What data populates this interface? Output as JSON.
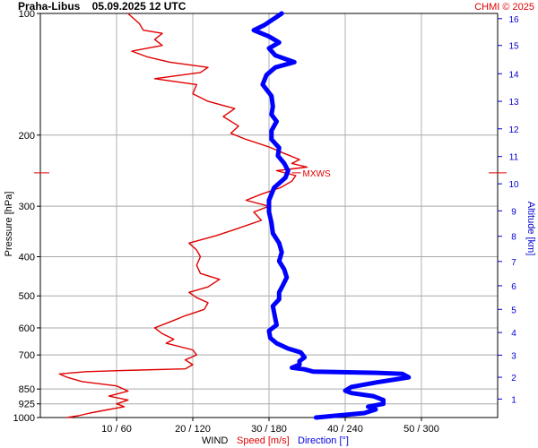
{
  "header": {
    "title": "Praha-Libus    05.09.2025 12 UTC",
    "credit": "CHMI © 2025"
  },
  "chart_data": {
    "type": "line",
    "title": "Praha-Libus    05.09.2025 12 UTC",
    "ylabel": "Pressure [hPa]",
    "y2label": "Altitude [km]",
    "xlabel": {
      "prefix": "WIND",
      "speed": "Speed [m/s]",
      "direction": "Direction [°]"
    },
    "y_scale": "log",
    "y_range_hpa": [
      1000,
      100
    ],
    "pressure_ticks": [
      100,
      200,
      300,
      400,
      500,
      600,
      700,
      850,
      925,
      1000
    ],
    "altitude_ticks_km": [
      1,
      2,
      3,
      4,
      5,
      6,
      7,
      8,
      9,
      10,
      11,
      12,
      13,
      14,
      15,
      16
    ],
    "altitude_km_at_pressure": [
      [
        1,
        900
      ],
      [
        2,
        795
      ],
      [
        3,
        701
      ],
      [
        4,
        616
      ],
      [
        5,
        540
      ],
      [
        6,
        472
      ],
      [
        7,
        411
      ],
      [
        8,
        356
      ],
      [
        9,
        308
      ],
      [
        10,
        264
      ],
      [
        11,
        226
      ],
      [
        12,
        193
      ],
      [
        13,
        165
      ],
      [
        14,
        141
      ],
      [
        15,
        120
      ],
      [
        16,
        103
      ]
    ],
    "x_tick_labels": [
      "10 / 60",
      "20 / 120",
      "30 / 180",
      "40 / 240",
      "50 / 300"
    ],
    "speed_range_ms": [
      0,
      60
    ],
    "direction_range_deg": [
      0,
      360
    ],
    "grid": true,
    "annotation": {
      "label": "MXWS",
      "pressure_hpa": 248,
      "speed_ms": 33
    },
    "series": [
      {
        "name": "Speed [m/s]",
        "unit": "m/s",
        "color": "#e00000",
        "points": [
          [
            1000,
            3.5
          ],
          [
            990,
            5
          ],
          [
            975,
            6.5
          ],
          [
            955,
            9
          ],
          [
            940,
            11
          ],
          [
            925,
            10
          ],
          [
            905,
            11.5
          ],
          [
            885,
            9
          ],
          [
            860,
            11.5
          ],
          [
            835,
            10
          ],
          [
            815,
            5.5
          ],
          [
            795,
            3.5
          ],
          [
            780,
            2.5
          ],
          [
            770,
            6
          ],
          [
            763,
            13
          ],
          [
            758,
            19
          ],
          [
            740,
            20
          ],
          [
            720,
            19
          ],
          [
            700,
            20.5
          ],
          [
            680,
            20
          ],
          [
            655,
            16.5
          ],
          [
            640,
            17.5
          ],
          [
            620,
            16
          ],
          [
            600,
            15
          ],
          [
            580,
            17
          ],
          [
            560,
            19
          ],
          [
            540,
            21.5
          ],
          [
            520,
            22
          ],
          [
            505,
            20.5
          ],
          [
            490,
            19.5
          ],
          [
            475,
            22
          ],
          [
            455,
            23.5
          ],
          [
            440,
            21
          ],
          [
            420,
            20.5
          ],
          [
            400,
            21
          ],
          [
            385,
            20.5
          ],
          [
            370,
            19.5
          ],
          [
            355,
            23
          ],
          [
            340,
            26
          ],
          [
            325,
            29
          ],
          [
            310,
            28
          ],
          [
            300,
            30
          ],
          [
            290,
            27
          ],
          [
            280,
            29
          ],
          [
            270,
            31.5
          ],
          [
            260,
            33
          ],
          [
            252,
            33.5
          ],
          [
            245,
            31
          ],
          [
            240,
            35
          ],
          [
            235,
            33
          ],
          [
            230,
            34
          ],
          [
            222,
            32
          ],
          [
            214,
            30
          ],
          [
            205,
            27
          ],
          [
            198,
            25
          ],
          [
            190,
            26
          ],
          [
            180,
            24
          ],
          [
            172,
            25.5
          ],
          [
            165,
            22
          ],
          [
            158,
            20
          ],
          [
            150,
            20.5
          ],
          [
            145,
            15
          ],
          [
            140,
            21
          ],
          [
            136,
            22
          ],
          [
            132,
            17
          ],
          [
            128,
            14
          ],
          [
            124,
            12
          ],
          [
            120,
            16
          ],
          [
            116,
            15
          ],
          [
            112,
            16
          ],
          [
            110,
            13.5
          ],
          [
            106,
            13
          ],
          [
            102,
            12
          ],
          [
            100,
            11.5
          ]
        ]
      },
      {
        "name": "Direction [°]",
        "unit": "deg",
        "color": "#0000ff",
        "points": [
          [
            1000,
            217
          ],
          [
            990,
            232
          ],
          [
            975,
            255
          ],
          [
            955,
            264
          ],
          [
            940,
            258
          ],
          [
            925,
            270
          ],
          [
            905,
            270
          ],
          [
            885,
            262
          ],
          [
            870,
            245
          ],
          [
            858,
            240
          ],
          [
            840,
            245
          ],
          [
            818,
            265
          ],
          [
            795,
            290
          ],
          [
            780,
            285
          ],
          [
            775,
            265
          ],
          [
            770,
            215
          ],
          [
            760,
            208
          ],
          [
            753,
            198
          ],
          [
            740,
            204
          ],
          [
            725,
            204
          ],
          [
            710,
            208
          ],
          [
            690,
            205
          ],
          [
            675,
            195
          ],
          [
            655,
            186
          ],
          [
            635,
            181
          ],
          [
            610,
            180
          ],
          [
            590,
            186
          ],
          [
            570,
            185
          ],
          [
            550,
            184
          ],
          [
            530,
            183
          ],
          [
            510,
            188
          ],
          [
            490,
            188
          ],
          [
            470,
            191
          ],
          [
            450,
            194
          ],
          [
            430,
            192
          ],
          [
            410,
            188
          ],
          [
            390,
            190
          ],
          [
            370,
            188
          ],
          [
            350,
            183
          ],
          [
            330,
            182
          ],
          [
            310,
            180
          ],
          [
            290,
            180
          ],
          [
            270,
            184
          ],
          [
            255,
            193
          ],
          [
            245,
            195
          ],
          [
            235,
            192
          ],
          [
            225,
            187
          ],
          [
            215,
            188
          ],
          [
            205,
            182
          ],
          [
            195,
            182
          ],
          [
            185,
            186
          ],
          [
            178,
            182
          ],
          [
            170,
            183
          ],
          [
            160,
            182
          ],
          [
            150,
            175
          ],
          [
            142,
            178
          ],
          [
            136,
            185
          ],
          [
            132,
            200
          ],
          [
            127,
            185
          ],
          [
            122,
            180
          ],
          [
            118,
            188
          ],
          [
            114,
            180
          ],
          [
            110,
            168
          ],
          [
            107,
            176
          ],
          [
            104,
            182
          ],
          [
            102,
            186
          ],
          [
            100,
            190
          ]
        ]
      }
    ]
  }
}
